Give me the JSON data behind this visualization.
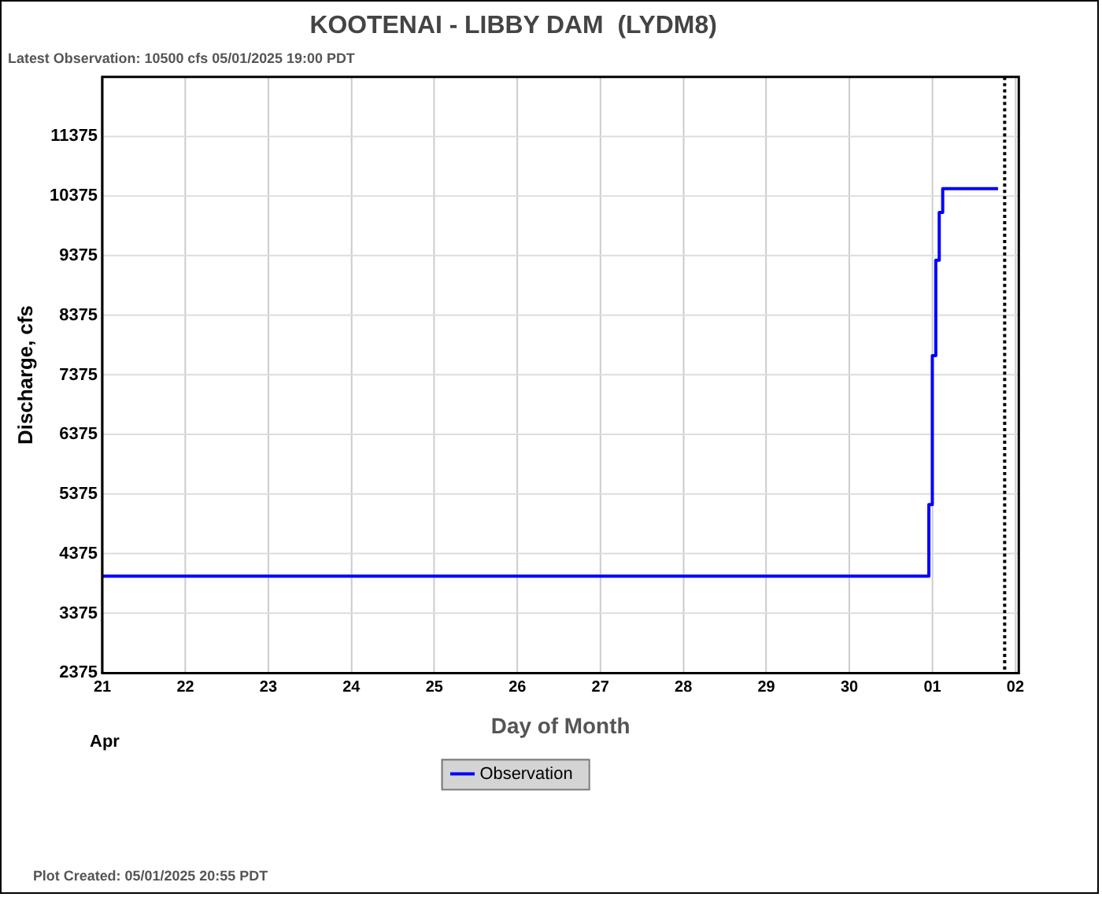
{
  "chart_data": {
    "type": "step",
    "title": "KOOTENAI - LIBBY DAM  (LYDM8)",
    "subtitle": "Latest Observation: 10500 cfs 05/01/2025 19:00 PDT",
    "xlabel": "Day of Month",
    "ylabel": "Discharge, cfs",
    "annotations": [
      "Apr",
      "Plot Created: 05/01/2025 20:55 PDT"
    ],
    "series": [
      {
        "name": "Observation",
        "color": "#0000ff",
        "x": [
          "2025-04-21T00:00",
          "2025-04-30T23:00",
          "2025-05-01T00:00",
          "2025-05-01T01:00",
          "2025-05-01T02:00",
          "2025-05-01T03:00",
          "2025-05-01T19:00"
        ],
        "values": [
          4000,
          5200,
          7700,
          9300,
          10100,
          10500,
          10500
        ]
      }
    ],
    "xlim": [
      "2025-04-21",
      "2025-05-02T01:00"
    ],
    "xticks": [
      {
        "value": "2025-04-21",
        "label": "21"
      },
      {
        "value": "2025-04-22",
        "label": "22"
      },
      {
        "value": "2025-04-23",
        "label": "23"
      },
      {
        "value": "2025-04-24",
        "label": "24"
      },
      {
        "value": "2025-04-25",
        "label": "25"
      },
      {
        "value": "2025-04-26",
        "label": "26"
      },
      {
        "value": "2025-04-27",
        "label": "27"
      },
      {
        "value": "2025-04-28",
        "label": "28"
      },
      {
        "value": "2025-04-29",
        "label": "29"
      },
      {
        "value": "2025-04-30",
        "label": "30"
      },
      {
        "value": "2025-05-01",
        "label": "01"
      },
      {
        "value": "2025-05-02",
        "label": "02"
      }
    ],
    "ylim": [
      2375,
      12375
    ],
    "yticks": [
      2375,
      3375,
      4375,
      5375,
      6375,
      7375,
      8375,
      9375,
      10375,
      11375
    ],
    "ref_lines": [
      {
        "axis": "x",
        "value": "2025-05-01T20:55",
        "color": "#000000",
        "line_style": "dotted"
      }
    ],
    "grid": true,
    "legend": "bottom",
    "marker": "none",
    "line_style": "solid"
  }
}
